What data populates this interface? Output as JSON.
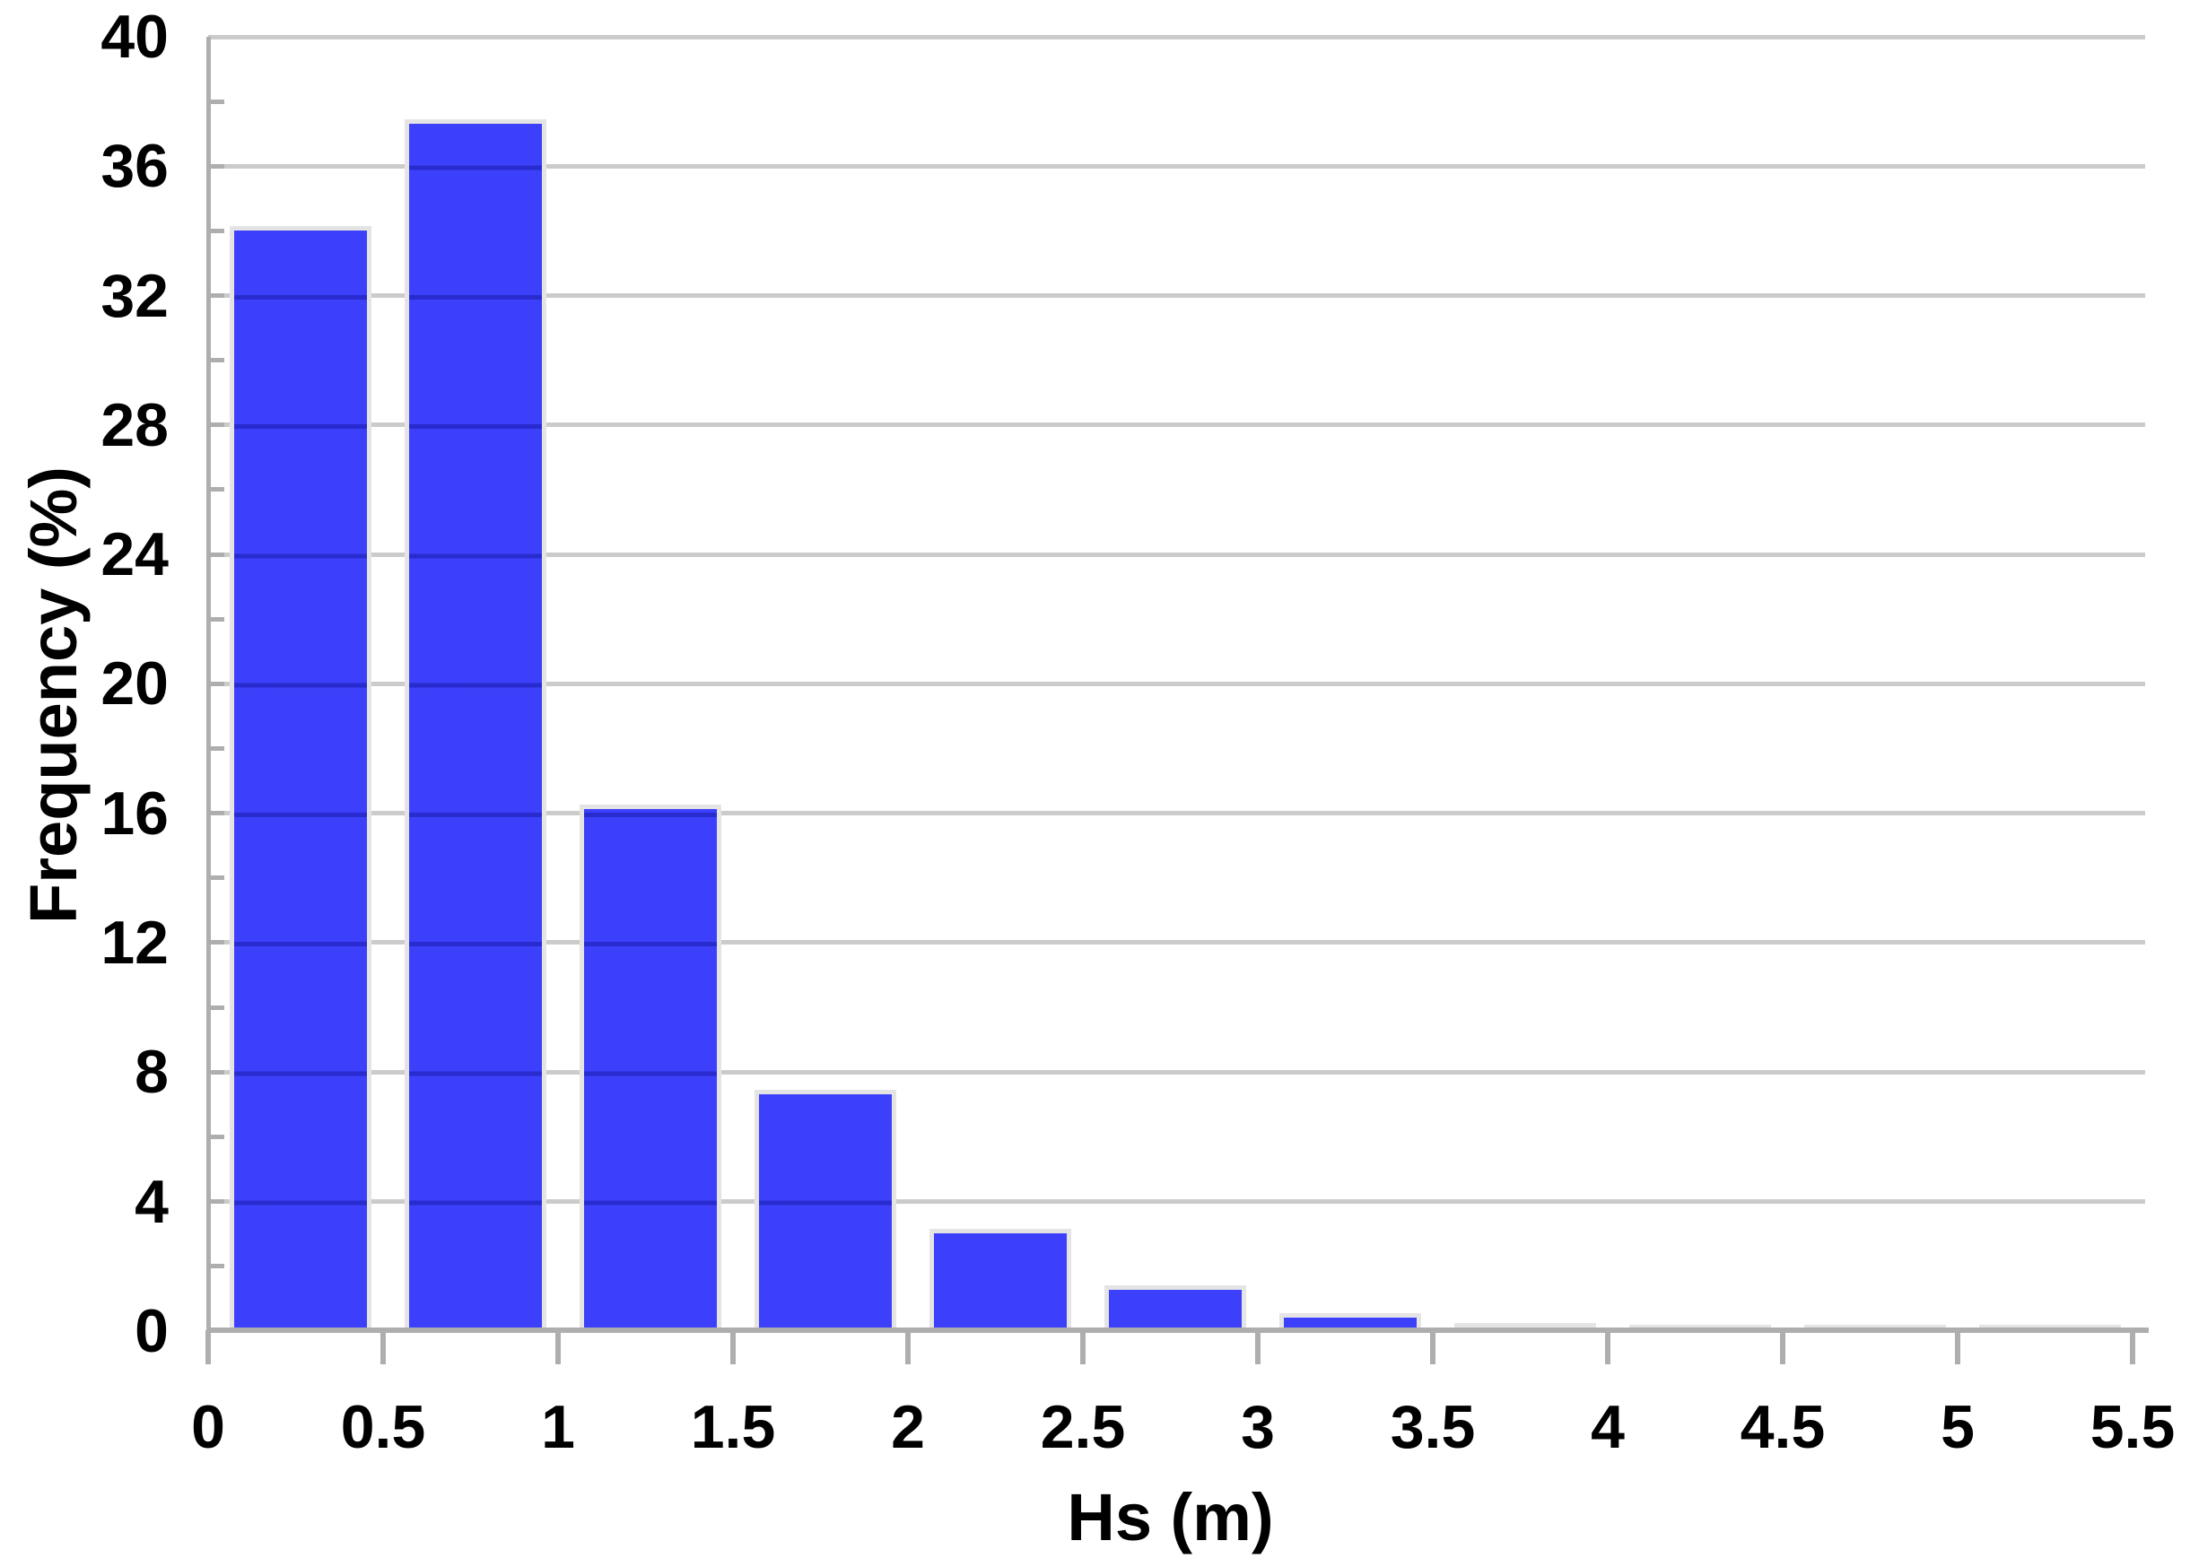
{
  "chart_data": {
    "type": "bar",
    "title": "",
    "xlabel": "Hs (m)",
    "ylabel": "Frequency (%)",
    "bins": [
      "0-0.5",
      "0.5-1",
      "1-1.5",
      "1.5-2",
      "2-2.5",
      "2.5-3",
      "3-3.5",
      "3.5-4",
      "4-4.5",
      "4.5-5",
      "5-5.5"
    ],
    "values": [
      34.0,
      37.3,
      16.1,
      7.3,
      3.0,
      1.25,
      0.4,
      0.08,
      0.02,
      0.02,
      0.02
    ],
    "x_tick_labels": [
      "0",
      "0.5",
      "1",
      "1.5",
      "2",
      "2.5",
      "3",
      "3.5",
      "4",
      "4.5",
      "5",
      "5.5"
    ],
    "y_tick_labels": [
      "0",
      "4",
      "8",
      "12",
      "16",
      "20",
      "24",
      "28",
      "32",
      "36",
      "40"
    ],
    "xlim": [
      0,
      5.5
    ],
    "ylim": [
      0,
      40
    ],
    "y_major_step": 4,
    "y_minor_tick_step": 2,
    "grid": "horizontal major gridlines only",
    "legend": "none",
    "colors": {
      "bar_fill": "#3d40fa",
      "bar_border": "#e4e4e4",
      "gridline": "#cbcbcb",
      "gridline_on_bar": "rgba(14,18,150,0.45)",
      "axis": "#aeaeae",
      "tick": "#aeaeae",
      "text": "#000000",
      "background": "#ffffff"
    }
  }
}
